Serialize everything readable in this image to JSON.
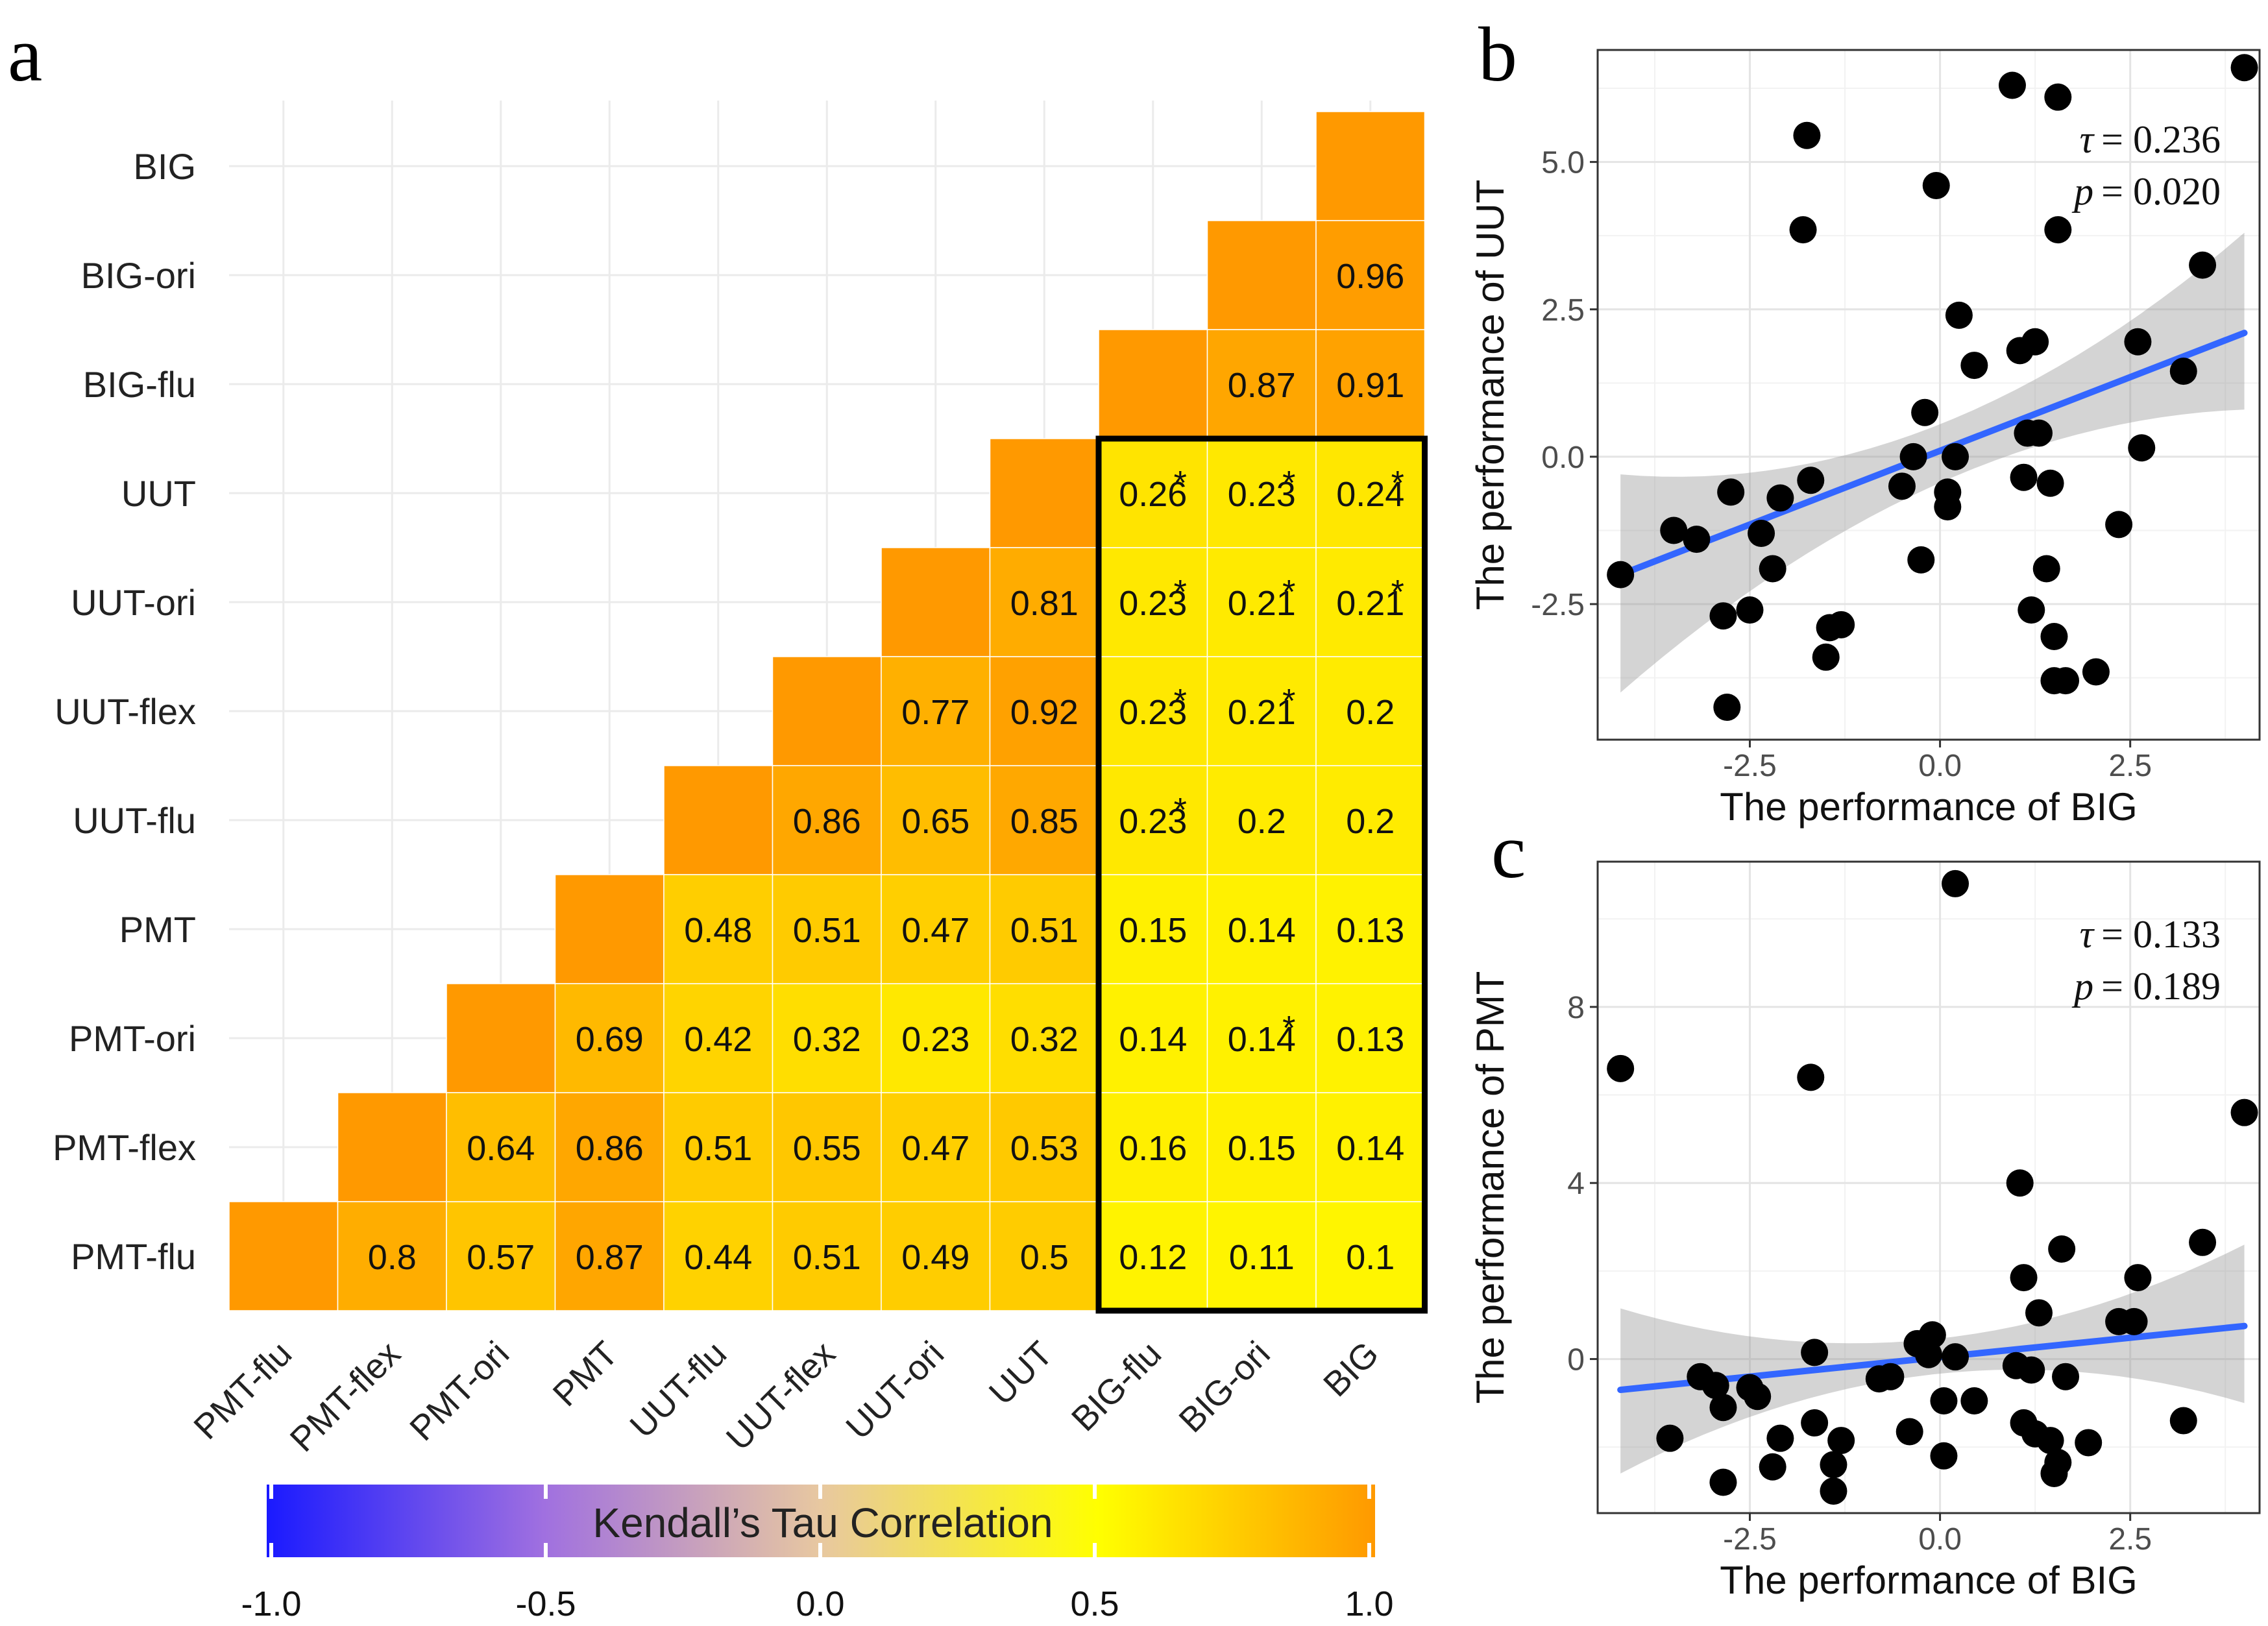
{
  "chart_data": [
    {
      "panel_label": "a",
      "type": "heatmap",
      "title": "",
      "variables": [
        "PMT-flu",
        "PMT-flex",
        "PMT-ori",
        "PMT",
        "UUT-flu",
        "UUT-flex",
        "UUT-ori",
        "UUT",
        "BIG-flu",
        "BIG-ori",
        "BIG"
      ],
      "cells": [
        {
          "row": "PMT-flex",
          "col": "PMT-flu",
          "value": 0.8,
          "sig": false
        },
        {
          "row": "PMT-ori",
          "col": "PMT-flu",
          "value": 0.57,
          "sig": false
        },
        {
          "row": "PMT-ori",
          "col": "PMT-flex",
          "value": 0.64,
          "sig": false
        },
        {
          "row": "PMT",
          "col": "PMT-flu",
          "value": 0.87,
          "sig": false
        },
        {
          "row": "PMT",
          "col": "PMT-flex",
          "value": 0.86,
          "sig": false
        },
        {
          "row": "PMT",
          "col": "PMT-ori",
          "value": 0.69,
          "sig": false
        },
        {
          "row": "UUT-flu",
          "col": "PMT-flu",
          "value": 0.44,
          "sig": false
        },
        {
          "row": "UUT-flu",
          "col": "PMT-flex",
          "value": 0.51,
          "sig": false
        },
        {
          "row": "UUT-flu",
          "col": "PMT-ori",
          "value": 0.42,
          "sig": false
        },
        {
          "row": "UUT-flu",
          "col": "PMT",
          "value": 0.48,
          "sig": false
        },
        {
          "row": "UUT-flex",
          "col": "PMT-flu",
          "value": 0.51,
          "sig": false
        },
        {
          "row": "UUT-flex",
          "col": "PMT-flex",
          "value": 0.55,
          "sig": false
        },
        {
          "row": "UUT-flex",
          "col": "PMT-ori",
          "value": 0.32,
          "sig": false
        },
        {
          "row": "UUT-flex",
          "col": "PMT",
          "value": 0.51,
          "sig": false
        },
        {
          "row": "UUT-flex",
          "col": "UUT-flu",
          "value": 0.86,
          "sig": false
        },
        {
          "row": "UUT-ori",
          "col": "PMT-flu",
          "value": 0.49,
          "sig": false
        },
        {
          "row": "UUT-ori",
          "col": "PMT-flex",
          "value": 0.47,
          "sig": false
        },
        {
          "row": "UUT-ori",
          "col": "PMT-ori",
          "value": 0.23,
          "sig": false
        },
        {
          "row": "UUT-ori",
          "col": "PMT",
          "value": 0.47,
          "sig": false
        },
        {
          "row": "UUT-ori",
          "col": "UUT-flu",
          "value": 0.65,
          "sig": false
        },
        {
          "row": "UUT-ori",
          "col": "UUT-flex",
          "value": 0.77,
          "sig": false
        },
        {
          "row": "UUT",
          "col": "PMT-flu",
          "value": 0.5,
          "sig": false
        },
        {
          "row": "UUT",
          "col": "PMT-flex",
          "value": 0.53,
          "sig": false
        },
        {
          "row": "UUT",
          "col": "PMT-ori",
          "value": 0.32,
          "sig": false
        },
        {
          "row": "UUT",
          "col": "PMT",
          "value": 0.51,
          "sig": false
        },
        {
          "row": "UUT",
          "col": "UUT-flu",
          "value": 0.85,
          "sig": false
        },
        {
          "row": "UUT",
          "col": "UUT-flex",
          "value": 0.92,
          "sig": false
        },
        {
          "row": "UUT",
          "col": "UUT-ori",
          "value": 0.81,
          "sig": false
        },
        {
          "row": "BIG-flu",
          "col": "PMT-flu",
          "value": 0.12,
          "sig": false
        },
        {
          "row": "BIG-flu",
          "col": "PMT-flex",
          "value": 0.16,
          "sig": false
        },
        {
          "row": "BIG-flu",
          "col": "PMT-ori",
          "value": 0.14,
          "sig": false
        },
        {
          "row": "BIG-flu",
          "col": "PMT",
          "value": 0.15,
          "sig": false
        },
        {
          "row": "BIG-flu",
          "col": "UUT-flu",
          "value": 0.23,
          "sig": true
        },
        {
          "row": "BIG-flu",
          "col": "UUT-flex",
          "value": 0.23,
          "sig": true
        },
        {
          "row": "BIG-flu",
          "col": "UUT-ori",
          "value": 0.23,
          "sig": true
        },
        {
          "row": "BIG-flu",
          "col": "UUT",
          "value": 0.26,
          "sig": true
        },
        {
          "row": "BIG-ori",
          "col": "PMT-flu",
          "value": 0.11,
          "sig": false
        },
        {
          "row": "BIG-ori",
          "col": "PMT-flex",
          "value": 0.15,
          "sig": false
        },
        {
          "row": "BIG-ori",
          "col": "PMT-ori",
          "value": 0.14,
          "sig": true
        },
        {
          "row": "BIG-ori",
          "col": "PMT",
          "value": 0.14,
          "sig": false
        },
        {
          "row": "BIG-ori",
          "col": "UUT-flu",
          "value": 0.2,
          "sig": false
        },
        {
          "row": "BIG-ori",
          "col": "UUT-flex",
          "value": 0.21,
          "sig": true
        },
        {
          "row": "BIG-ori",
          "col": "UUT-ori",
          "value": 0.21,
          "sig": true
        },
        {
          "row": "BIG-ori",
          "col": "UUT",
          "value": 0.23,
          "sig": true
        },
        {
          "row": "BIG-ori",
          "col": "BIG-flu",
          "value": 0.87,
          "sig": false
        },
        {
          "row": "BIG",
          "col": "PMT-flu",
          "value": 0.1,
          "sig": false
        },
        {
          "row": "BIG",
          "col": "PMT-flex",
          "value": 0.14,
          "sig": false
        },
        {
          "row": "BIG",
          "col": "PMT-ori",
          "value": 0.13,
          "sig": false
        },
        {
          "row": "BIG",
          "col": "PMT",
          "value": 0.13,
          "sig": false
        },
        {
          "row": "BIG",
          "col": "UUT-flu",
          "value": 0.2,
          "sig": false
        },
        {
          "row": "BIG",
          "col": "UUT-flex",
          "value": 0.2,
          "sig": false
        },
        {
          "row": "BIG",
          "col": "UUT-ori",
          "value": 0.21,
          "sig": true
        },
        {
          "row": "BIG",
          "col": "UUT",
          "value": 0.24,
          "sig": true
        },
        {
          "row": "BIG",
          "col": "BIG-flu",
          "value": 0.91,
          "sig": false
        },
        {
          "row": "BIG",
          "col": "BIG-ori",
          "value": 0.96,
          "sig": false
        }
      ],
      "sig_marker": "*",
      "highlight_box": {
        "cols": [
          "BIG-flu",
          "BIG-ori",
          "BIG"
        ],
        "rows": [
          "PMT-flu",
          "PMT-flex",
          "PMT-ori",
          "PMT",
          "UUT-flu",
          "UUT-flex",
          "UUT-ori",
          "UUT"
        ]
      },
      "colorbar": {
        "title": "Kendall’s Tau Correlation",
        "range": [
          -1,
          1
        ],
        "ticks": [
          -1.0,
          -0.5,
          0.0,
          0.5,
          1.0
        ],
        "tick_labels": [
          "-1.0",
          "-0.5",
          "0.0",
          "0.5",
          "1.0"
        ],
        "colors": [
          "#1a1aff",
          "#ffff00",
          "#ff9900"
        ]
      }
    },
    {
      "panel_label": "b",
      "type": "scatter",
      "xlabel": "The performance of BIG",
      "ylabel": "The performance of UUT",
      "xlim": [
        -4.5,
        4.2
      ],
      "ylim": [
        -4.8,
        6.9
      ],
      "xticks": [
        -2.5,
        0.0,
        2.5
      ],
      "xtick_labels": [
        "-2.5",
        "0.0",
        "2.5"
      ],
      "yticks": [
        -2.5,
        0.0,
        2.5,
        5.0
      ],
      "ytick_labels": [
        "-2.5",
        "0.0",
        "2.5",
        "5.0"
      ],
      "stat_tau_label": "τ",
      "stat_tau_value": "= 0.236",
      "stat_p_label": "p",
      "stat_p_value": "= 0.020",
      "regression": {
        "x0": -4.2,
        "y0": -2.0,
        "x1": 4.0,
        "y1": 2.1,
        "ci_low_x0": -4.0,
        "ci_high_x0": -0.3,
        "ci_low_mid": -0.5,
        "ci_high_mid": 0.5,
        "ci_low_x1": 0.8,
        "ci_high_x1": 3.8
      },
      "points": [
        [
          -4.2,
          -2.0
        ],
        [
          -3.5,
          -1.25
        ],
        [
          -3.2,
          -1.4
        ],
        [
          -2.85,
          -2.7
        ],
        [
          -2.8,
          -4.25
        ],
        [
          -2.75,
          -0.6
        ],
        [
          -2.5,
          -2.6
        ],
        [
          -2.35,
          -1.3
        ],
        [
          -2.2,
          -1.9
        ],
        [
          -2.1,
          -0.7
        ],
        [
          -1.75,
          5.45
        ],
        [
          -1.8,
          3.85
        ],
        [
          -1.7,
          -0.4
        ],
        [
          -1.5,
          -3.4
        ],
        [
          -1.45,
          -2.9
        ],
        [
          -1.3,
          -2.85
        ],
        [
          -0.5,
          -0.5
        ],
        [
          -0.35,
          0.0
        ],
        [
          -0.25,
          -1.75
        ],
        [
          -0.2,
          0.75
        ],
        [
          -0.05,
          4.6
        ],
        [
          0.1,
          -0.6
        ],
        [
          0.1,
          -0.85
        ],
        [
          0.2,
          0.0
        ],
        [
          0.25,
          2.4
        ],
        [
          0.45,
          1.55
        ],
        [
          0.95,
          6.3
        ],
        [
          1.05,
          1.8
        ],
        [
          1.1,
          -0.35
        ],
        [
          1.15,
          0.4
        ],
        [
          1.2,
          -2.6
        ],
        [
          1.25,
          1.95
        ],
        [
          1.3,
          0.4
        ],
        [
          1.4,
          -1.9
        ],
        [
          1.45,
          -0.45
        ],
        [
          1.5,
          -3.05
        ],
        [
          1.5,
          -3.8
        ],
        [
          1.55,
          6.1
        ],
        [
          1.55,
          3.85
        ],
        [
          1.65,
          -3.8
        ],
        [
          2.05,
          -3.65
        ],
        [
          2.35,
          -1.15
        ],
        [
          2.6,
          1.95
        ],
        [
          2.65,
          0.15
        ],
        [
          3.2,
          1.45
        ],
        [
          3.45,
          3.25
        ],
        [
          4.0,
          6.6
        ]
      ]
    },
    {
      "panel_label": "c",
      "type": "scatter",
      "xlabel": "The performance of BIG",
      "ylabel": "The performance of PMT",
      "xlim": [
        -4.5,
        4.2
      ],
      "ylim": [
        -3.5,
        11.3
      ],
      "xticks": [
        -2.5,
        0.0,
        2.5
      ],
      "xtick_labels": [
        "-2.5",
        "0.0",
        "2.5"
      ],
      "yticks": [
        0,
        4,
        8
      ],
      "ytick_labels": [
        "0",
        "4",
        "8"
      ],
      "stat_tau_label": "τ",
      "stat_tau_value": "= 0.133",
      "stat_p_label": "p",
      "stat_p_value": "= 0.189",
      "regression": {
        "x0": -4.2,
        "y0": -0.7,
        "x1": 4.0,
        "y1": 0.75,
        "ci_low_x0": -2.6,
        "ci_high_x0": 1.15,
        "ci_low_mid": -0.35,
        "ci_high_mid": 0.45,
        "ci_low_x1": -1.0,
        "ci_high_x1": 2.6
      },
      "points": [
        [
          -4.2,
          6.6
        ],
        [
          -3.55,
          -1.8
        ],
        [
          -3.15,
          -0.4
        ],
        [
          -2.95,
          -0.6
        ],
        [
          -2.85,
          -1.1
        ],
        [
          -2.85,
          -2.8
        ],
        [
          -2.5,
          -0.65
        ],
        [
          -2.4,
          -0.85
        ],
        [
          -2.2,
          -2.45
        ],
        [
          -2.1,
          -1.8
        ],
        [
          -1.7,
          6.4
        ],
        [
          -1.65,
          0.15
        ],
        [
          -1.65,
          -1.45
        ],
        [
          -1.4,
          -3.0
        ],
        [
          -1.4,
          -2.4
        ],
        [
          -1.3,
          -1.85
        ],
        [
          -0.8,
          -0.45
        ],
        [
          -0.65,
          -0.4
        ],
        [
          -0.4,
          -1.65
        ],
        [
          -0.3,
          0.35
        ],
        [
          -0.1,
          0.55
        ],
        [
          -0.15,
          0.1
        ],
        [
          0.05,
          -2.2
        ],
        [
          0.05,
          -0.95
        ],
        [
          0.2,
          10.8
        ],
        [
          0.2,
          0.05
        ],
        [
          0.45,
          -0.95
        ],
        [
          1.0,
          -0.15
        ],
        [
          1.05,
          4.0
        ],
        [
          1.1,
          1.85
        ],
        [
          1.1,
          -1.45
        ],
        [
          1.2,
          -0.25
        ],
        [
          1.25,
          -1.7
        ],
        [
          1.3,
          1.05
        ],
        [
          1.45,
          -1.85
        ],
        [
          1.5,
          -2.6
        ],
        [
          1.55,
          -2.35
        ],
        [
          1.6,
          2.5
        ],
        [
          1.65,
          -0.4
        ],
        [
          1.95,
          -1.9
        ],
        [
          2.35,
          0.85
        ],
        [
          2.55,
          0.85
        ],
        [
          2.6,
          1.85
        ],
        [
          3.2,
          -1.4
        ],
        [
          3.45,
          2.65
        ],
        [
          4.0,
          5.6
        ]
      ]
    }
  ]
}
